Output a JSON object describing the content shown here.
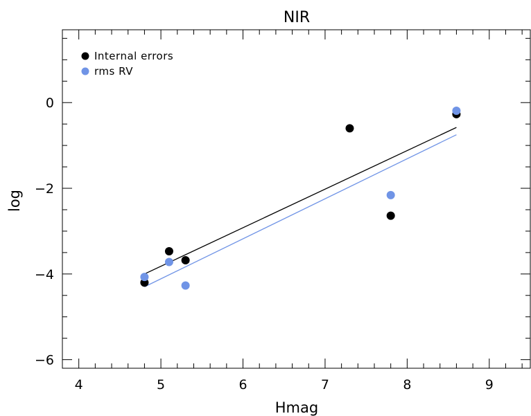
{
  "chart_data": {
    "type": "scatter",
    "title": "NIR",
    "xlabel": "Hmag",
    "ylabel": "log",
    "xlim": [
      3.8,
      9.5
    ],
    "ylim": [
      -6.2,
      1.7
    ],
    "xticks": [
      4,
      5,
      6,
      7,
      8,
      9
    ],
    "yticks": [
      -6,
      -4,
      -2,
      0
    ],
    "x_minor_step": 0.2,
    "y_minor_step": 0.5,
    "legend_position": "top-left",
    "series": [
      {
        "name": "Internal errors",
        "color": "#000000",
        "points": [
          {
            "x": 4.8,
            "y": -4.2
          },
          {
            "x": 5.1,
            "y": -3.47
          },
          {
            "x": 5.3,
            "y": -3.68
          },
          {
            "x": 7.3,
            "y": -0.6
          },
          {
            "x": 7.8,
            "y": -2.64
          },
          {
            "x": 8.6,
            "y": -0.27
          }
        ],
        "fit": {
          "x": [
            4.8,
            8.6
          ],
          "y": [
            -4.0,
            -0.58
          ]
        }
      },
      {
        "name": "rms RV",
        "color": "#7094e6",
        "points": [
          {
            "x": 4.8,
            "y": -4.07
          },
          {
            "x": 5.1,
            "y": -3.72
          },
          {
            "x": 5.3,
            "y": -4.27
          },
          {
            "x": 7.8,
            "y": -2.16
          },
          {
            "x": 8.6,
            "y": -0.19
          }
        ],
        "fit": {
          "x": [
            4.8,
            8.6
          ],
          "y": [
            -4.3,
            -0.75
          ]
        }
      }
    ]
  }
}
